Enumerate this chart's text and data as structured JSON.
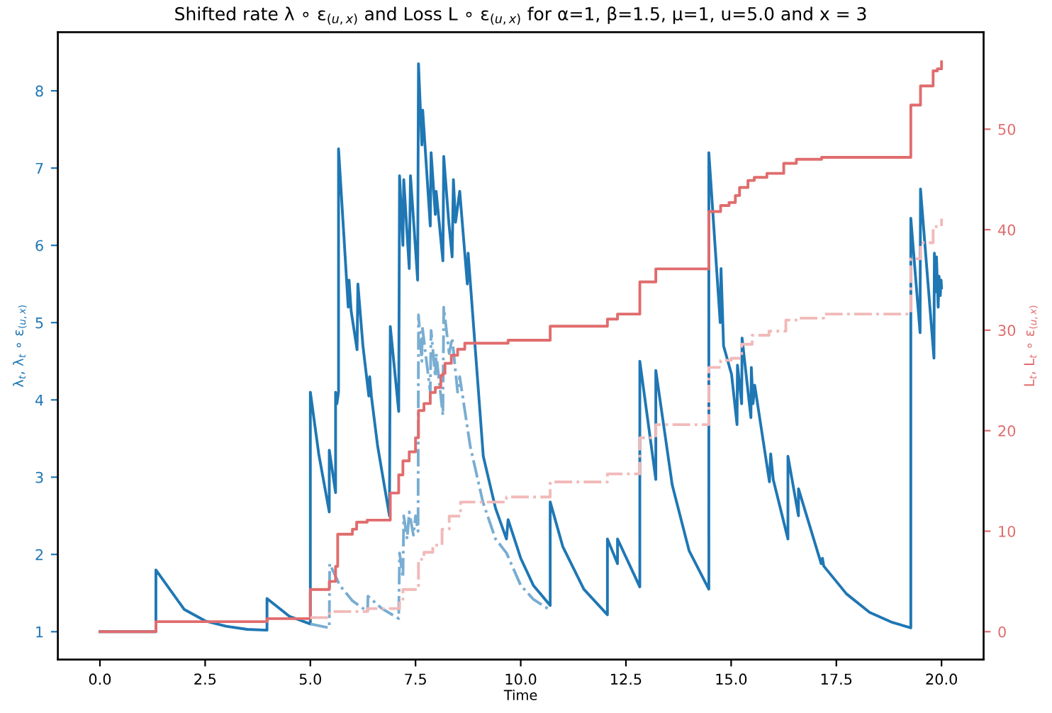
{
  "chart_data": {
    "type": "line",
    "title": "Shifted rate λ ∘ ε$_{(u,x)}$ and Loss L ∘ ε$_{(u,x)}$ for α=1, β=1.5, μ=1, u=5.0 and x = 3",
    "xlabel": "Time",
    "ylabel": "λ$_{t}$, λ$_{t}$ ∘ ε$_{(u,x)}$",
    "y2label": "L$_{t}$, L$_{t}$ ∘ ε$_{(u,x)}$",
    "xlim": [
      -1.0,
      21.0
    ],
    "ylim": [
      0.64,
      8.76
    ],
    "y2lim": [
      -2.77,
      59.66
    ],
    "xticks": [
      {
        "value": 0,
        "label": "0.0"
      },
      {
        "value": 2.5,
        "label": "2.5"
      },
      {
        "value": 5,
        "label": "5.0"
      },
      {
        "value": 7.5,
        "label": "7.5"
      },
      {
        "value": 10,
        "label": "10.0"
      },
      {
        "value": 12.5,
        "label": "12.5"
      },
      {
        "value": 15,
        "label": "15.0"
      },
      {
        "value": 17.5,
        "label": "17.5"
      },
      {
        "value": 20,
        "label": "20.0"
      }
    ],
    "yticks": [
      1,
      2,
      3,
      4,
      5,
      6,
      7,
      8
    ],
    "y2ticks": [
      0,
      10,
      20,
      30,
      40,
      50
    ],
    "grid": false,
    "marker": "none",
    "series": [
      {
        "axis": "y",
        "color": "#1f77b4",
        "line_style": "solid",
        "x": [
          0,
          1.33,
          1.33,
          2.0,
          2.5,
          3.0,
          3.5,
          3.97,
          3.97,
          4.5,
          5.0,
          5.0,
          5.2,
          5.45,
          5.45,
          5.6,
          5.6,
          5.63,
          5.67,
          5.67,
          5.8,
          5.9,
          5.92,
          5.97,
          6.11,
          6.13,
          6.25,
          6.39,
          6.41,
          6.45,
          6.6,
          6.88,
          6.9,
          7.1,
          7.12,
          7.2,
          7.22,
          7.35,
          7.38,
          7.55,
          7.57,
          7.65,
          7.67,
          7.85,
          7.87,
          7.97,
          7.99,
          8.15,
          8.17,
          8.29,
          8.37,
          8.4,
          8.45,
          8.55,
          8.73,
          8.75,
          9.11,
          9.4,
          9.66,
          9.7,
          10.0,
          10.3,
          10.7,
          10.7,
          11.0,
          11.5,
          12.06,
          12.06,
          12.3,
          12.3,
          12.83,
          12.83,
          13.21,
          13.21,
          13.6,
          14.0,
          14.47,
          14.47,
          14.74,
          14.76,
          14.82,
          15.01,
          15.14,
          15.15,
          15.25,
          15.26,
          15.47,
          15.48,
          15.52,
          15.56,
          15.91,
          15.94,
          16.0,
          16.35,
          16.35,
          16.6,
          16.6,
          17.14,
          17.17,
          17.2,
          17.74,
          18.29,
          18.83,
          19.27,
          19.27,
          19.49,
          19.5,
          19.82,
          19.83,
          19.86,
          19.88,
          19.92,
          19.94,
          19.97,
          19.99,
          20.0
        ],
        "values": [
          1,
          1,
          1.8,
          1.29,
          1.14,
          1.07,
          1.03,
          1.02,
          1.43,
          1.2,
          1.1,
          4.1,
          3.3,
          2.55,
          3.35,
          2.8,
          4.1,
          3.95,
          4.1,
          7.25,
          6.1,
          5.2,
          5.55,
          5.15,
          4.65,
          5.5,
          4.7,
          4.05,
          4.3,
          4.05,
          3.4,
          2.5,
          4.95,
          3.85,
          6.9,
          6.0,
          6.85,
          5.7,
          6.9,
          5.55,
          8.35,
          7.3,
          7.75,
          6.25,
          7.2,
          6.4,
          6.7,
          5.8,
          7.15,
          6.3,
          5.85,
          6.85,
          6.3,
          6.7,
          5.5,
          5.9,
          3.27,
          2.6,
          2.2,
          2.45,
          1.95,
          1.6,
          1.34,
          2.68,
          2.1,
          1.55,
          1.22,
          2.2,
          1.88,
          2.2,
          1.58,
          4.5,
          2.97,
          4.38,
          2.9,
          2.05,
          1.55,
          7.2,
          5.0,
          5.7,
          4.7,
          4.33,
          3.68,
          4.45,
          3.95,
          4.8,
          3.77,
          4.42,
          3.95,
          4.19,
          2.94,
          3.3,
          2.97,
          2.2,
          3.27,
          2.5,
          2.85,
          1.88,
          1.95,
          1.85,
          1.49,
          1.25,
          1.12,
          1.05,
          6.35,
          4.87,
          6.73,
          4.54,
          5.9,
          5.4,
          5.85,
          5.2,
          5.6,
          5.35,
          5.55,
          5.45
        ]
      },
      {
        "axis": "y",
        "color": "#79add2",
        "line_style": "dashdot",
        "x": [
          5.0,
          5.45,
          5.46,
          5.7,
          6.0,
          6.36,
          6.37,
          6.7,
          7.1,
          7.12,
          7.2,
          7.22,
          7.3,
          7.35,
          7.45,
          7.5,
          7.56,
          7.57,
          7.65,
          7.66,
          7.85,
          7.87,
          7.97,
          7.99,
          8.15,
          8.17,
          8.3,
          8.37,
          8.5,
          8.55,
          8.8,
          9.1,
          9.4,
          9.66,
          10.0,
          10.3,
          10.7
        ],
        "values": [
          1.1,
          1.05,
          1.88,
          1.6,
          1.4,
          1.26,
          1.46,
          1.3,
          1.17,
          2.02,
          1.7,
          2.5,
          2.2,
          2.55,
          2.25,
          2.5,
          2.3,
          5.1,
          4.5,
          4.95,
          4.1,
          4.9,
          4.3,
          4.6,
          3.8,
          5.2,
          4.6,
          4.8,
          4.1,
          4.3,
          3.4,
          2.68,
          2.2,
          2.02,
          1.6,
          1.42,
          1.28
        ]
      },
      {
        "type": "step",
        "axis": "y2",
        "color": "#e06c6d",
        "line_style": "solid",
        "x": [
          0,
          1.33,
          3.97,
          5.0,
          5.45,
          5.6,
          5.65,
          6.0,
          6.1,
          6.35,
          6.9,
          7.1,
          7.2,
          7.35,
          7.5,
          7.57,
          7.7,
          7.85,
          7.97,
          8.1,
          8.15,
          8.2,
          8.35,
          8.5,
          8.67,
          9.7,
          10.7,
          12.06,
          12.3,
          12.83,
          13.21,
          14.47,
          14.75,
          14.95,
          15.1,
          15.2,
          15.4,
          15.55,
          15.85,
          16.25,
          16.55,
          17.15,
          19.27,
          19.5,
          19.8,
          19.9,
          20.0
        ],
        "values": [
          0,
          1.0,
          1.3,
          4.2,
          5.0,
          6.5,
          9.7,
          10.2,
          10.9,
          11.1,
          13.8,
          15.6,
          17.0,
          17.9,
          19.3,
          22.0,
          22.7,
          23.8,
          24.3,
          25.5,
          25.7,
          26.7,
          27.5,
          28.1,
          28.7,
          29.0,
          30.4,
          31.1,
          31.6,
          34.8,
          36.1,
          41.8,
          42.4,
          42.7,
          43.4,
          44.2,
          44.9,
          45.2,
          45.6,
          46.6,
          47.0,
          47.2,
          52.4,
          54.3,
          55.8,
          56.0,
          56.7
        ]
      },
      {
        "type": "step",
        "axis": "y2",
        "color": "#f2b9b9",
        "line_style": "dashdot",
        "x": [
          5.0,
          5.46,
          6.36,
          7.12,
          7.2,
          7.57,
          7.7,
          7.91,
          8.13,
          8.3,
          8.57,
          9.66,
          10.7,
          12.06,
          12.83,
          13.21,
          14.47,
          14.75,
          15.0,
          15.25,
          15.5,
          15.9,
          16.3,
          16.6,
          17.2,
          19.27,
          19.5,
          19.8,
          20.0
        ],
        "values": [
          1.4,
          2.0,
          2.3,
          3.1,
          4.2,
          7.2,
          7.9,
          8.6,
          10.2,
          11.5,
          12.9,
          13.4,
          14.9,
          15.7,
          19.3,
          20.6,
          26.3,
          27.0,
          27.2,
          28.6,
          29.5,
          29.9,
          31.0,
          31.2,
          31.6,
          37.1,
          38.7,
          40.3,
          41.1
        ]
      }
    ]
  }
}
